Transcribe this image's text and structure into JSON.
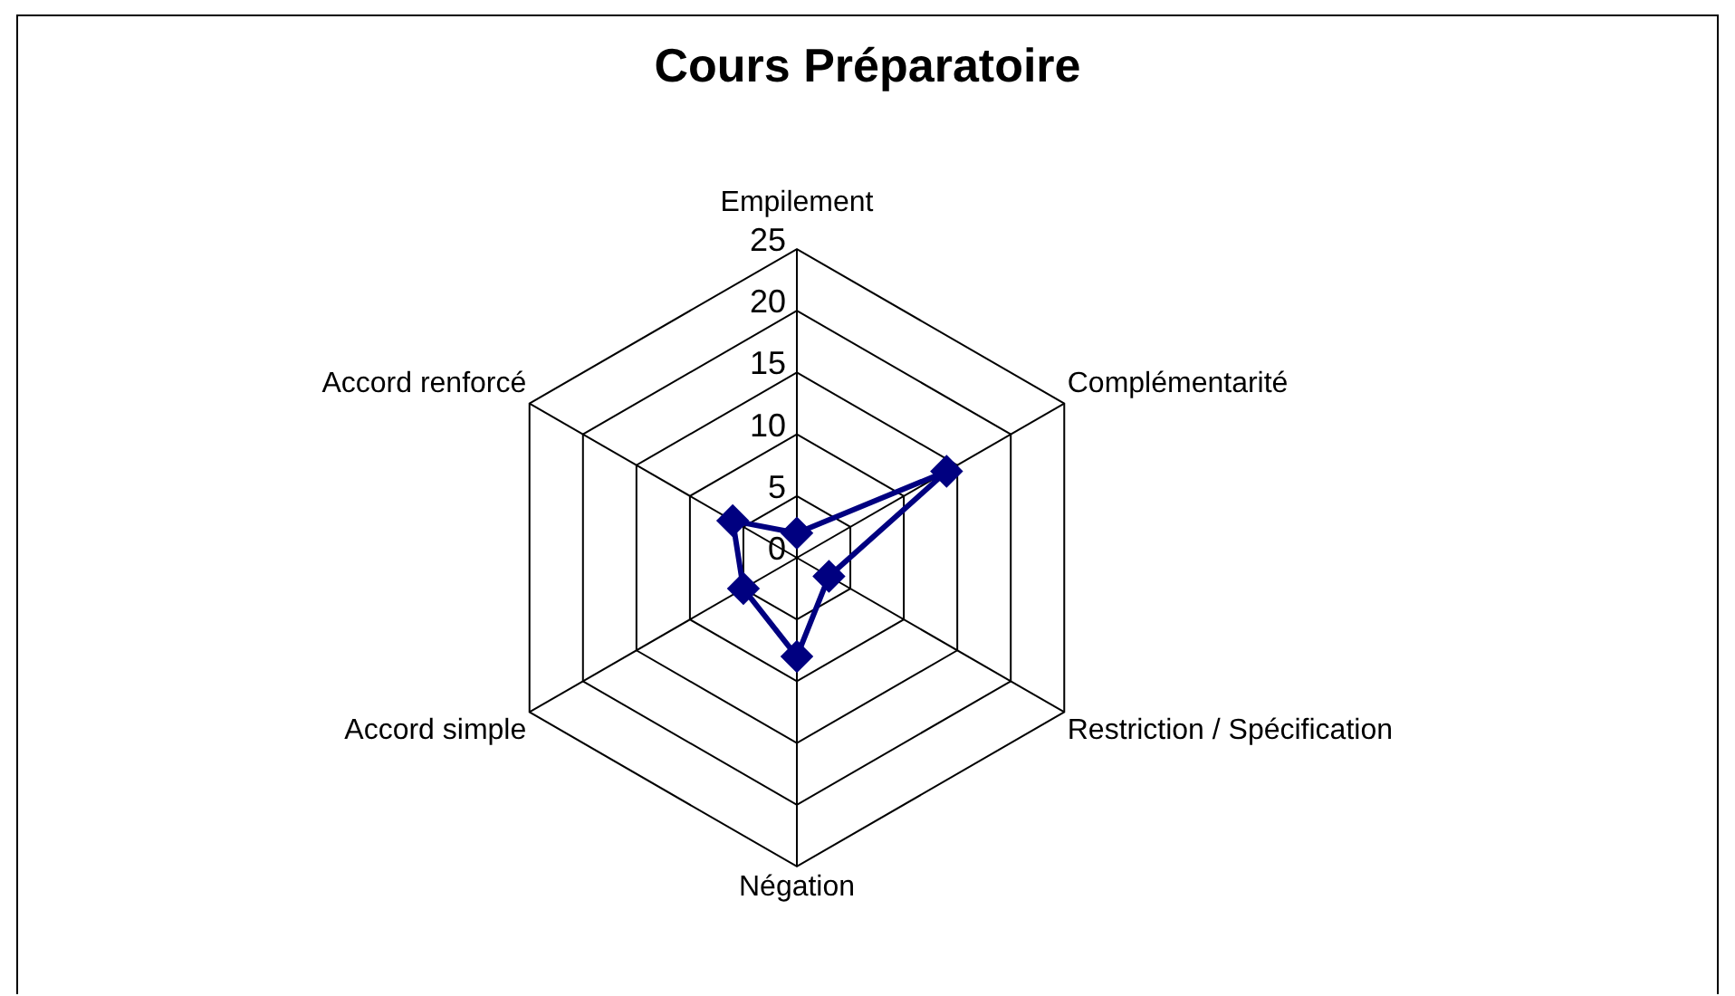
{
  "chart_data": {
    "type": "radar",
    "title": "Cours Préparatoire",
    "categories": [
      "Empilement",
      "Complémentarité",
      "Restriction / Spécification",
      "Négation",
      "Accord simple",
      "Accord renforcé"
    ],
    "series": [
      {
        "color": "#000080",
        "values": [
          2,
          14,
          3,
          8,
          5,
          6
        ]
      }
    ],
    "ylim": [
      0,
      25
    ],
    "yticks": [
      0,
      5,
      10,
      15,
      20,
      25
    ],
    "grid": true,
    "legend": false,
    "marker": "diamond",
    "line_style": "solid"
  }
}
